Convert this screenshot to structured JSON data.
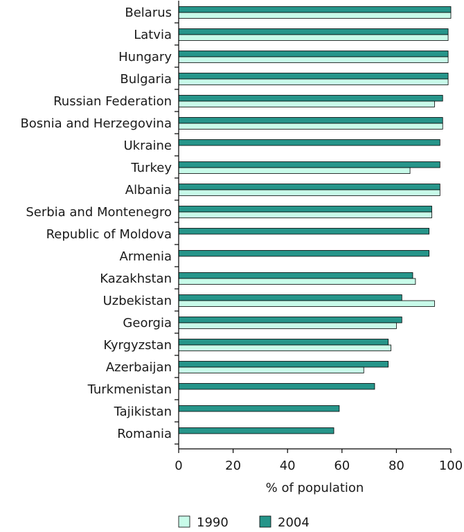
{
  "chart_data": {
    "type": "bar",
    "orientation": "horizontal",
    "categories": [
      "Belarus",
      "Latvia",
      "Hungary",
      "Bulgaria",
      "Russian Federation",
      "Bosnia and Herzegovina",
      "Ukraine",
      "Turkey",
      "Albania",
      "Serbia and Montenegro",
      "Republic of Moldova",
      "Armenia",
      "Kazakhstan",
      "Uzbekistan",
      "Georgia",
      "Kyrgyzstan",
      "Azerbaijan",
      "Turkmenistan",
      "Tajikistan",
      "Romania"
    ],
    "series": [
      {
        "name": "2004",
        "color": "#26958a",
        "values": [
          100,
          99,
          99,
          99,
          97,
          97,
          96,
          96,
          96,
          93,
          92,
          92,
          86,
          82,
          82,
          77,
          77,
          72,
          59,
          57
        ]
      },
      {
        "name": "1990",
        "color": "#c8fbe9",
        "values": [
          100,
          99,
          99,
          99,
          94,
          97,
          null,
          85,
          96,
          93,
          null,
          null,
          87,
          94,
          80,
          78,
          68,
          null,
          null,
          null
        ]
      }
    ],
    "xlabel": "% of population",
    "xlim": [
      0,
      100
    ],
    "xticks": [
      0,
      20,
      40,
      60,
      80,
      100
    ],
    "legend_position": "bottom",
    "legend_order": [
      "1990",
      "2004"
    ],
    "grid": false
  }
}
